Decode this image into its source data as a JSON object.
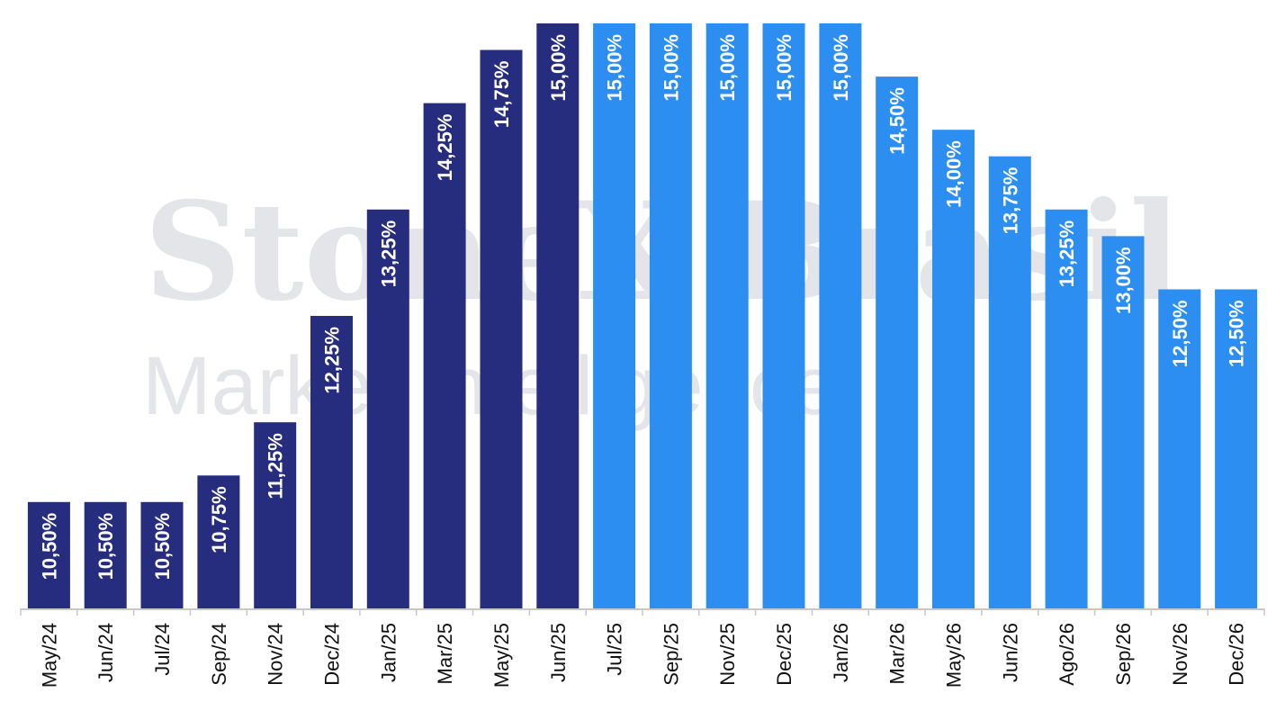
{
  "watermark": {
    "line1": "StoneX Brasil",
    "line2": "Market Intelligence"
  },
  "chart_data": {
    "type": "bar",
    "categories": [
      "May/24",
      "Jun/24",
      "Jul/24",
      "Sep/24",
      "Nov/24",
      "Dec/24",
      "Jan/25",
      "Mar/25",
      "May/25",
      "Jun/25",
      "Jul/25",
      "Sep/25",
      "Nov/25",
      "Dec/25",
      "Jan/26",
      "Mar/26",
      "May/26",
      "Jun/26",
      "Ago/26",
      "Sep/26",
      "Nov/26",
      "Dec/26"
    ],
    "values": [
      10.5,
      10.5,
      10.5,
      10.75,
      11.25,
      12.25,
      13.25,
      14.25,
      14.75,
      15.0,
      15.0,
      15.0,
      15.0,
      15.0,
      15.0,
      14.5,
      14.0,
      13.75,
      13.25,
      13.0,
      12.5,
      12.5
    ],
    "data_labels": [
      "10,50%",
      "10,50%",
      "10,50%",
      "10,75%",
      "11,25%",
      "12,25%",
      "13,25%",
      "14,25%",
      "14,75%",
      "15,00%",
      "15,00%",
      "15,00%",
      "15,00%",
      "15,00%",
      "15,00%",
      "14,50%",
      "14,00%",
      "13,75%",
      "13,25%",
      "13,00%",
      "12,50%",
      "12,50%"
    ],
    "bar_status": [
      "actual",
      "actual",
      "actual",
      "actual",
      "actual",
      "actual",
      "actual",
      "actual",
      "actual",
      "actual",
      "forecast",
      "forecast",
      "forecast",
      "forecast",
      "forecast",
      "forecast",
      "forecast",
      "forecast",
      "forecast",
      "forecast",
      "forecast",
      "forecast"
    ],
    "colors": {
      "actual": "#262C7E",
      "forecast": "#2B8EF0",
      "axis": "#c8c8c8"
    },
    "title": "",
    "xlabel": "",
    "ylabel": "",
    "ylim": [
      9.5,
      15.0
    ],
    "grid": false,
    "legend": "none"
  }
}
